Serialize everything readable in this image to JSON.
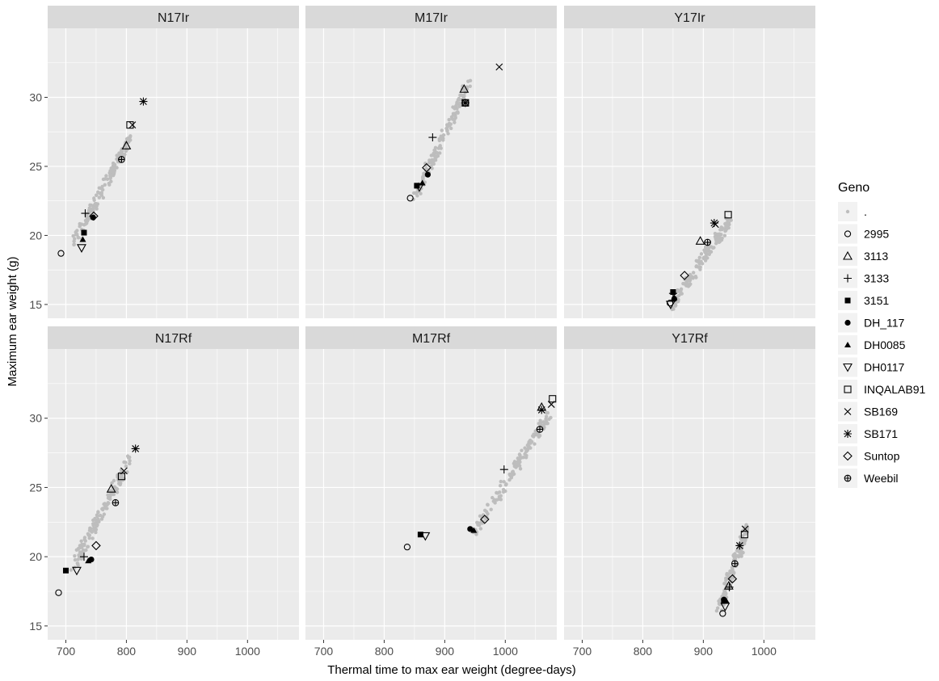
{
  "chart_data": {
    "type": "scatter",
    "xlabel": "Thermal time to max ear weight (degree-days)",
    "ylabel": "Maximum ear weight (g)",
    "x_ticks": [
      700,
      800,
      900,
      1000
    ],
    "y_ticks": [
      15,
      20,
      25,
      30
    ],
    "legend": {
      "title": "Geno",
      "position": "right",
      "entries": [
        {
          "label": ".",
          "shape": "dot-grey"
        },
        {
          "label": "2995",
          "shape": "circle-open"
        },
        {
          "label": "3113",
          "shape": "triangle-open"
        },
        {
          "label": "3133",
          "shape": "plus"
        },
        {
          "label": "3151",
          "shape": "square-filled"
        },
        {
          "label": "DH_117",
          "shape": "circle-filled"
        },
        {
          "label": "DH0085",
          "shape": "triangle-filled"
        },
        {
          "label": "DH0117",
          "shape": "triangle-down-open"
        },
        {
          "label": "INQALAB91",
          "shape": "square-open"
        },
        {
          "label": "SB169",
          "shape": "cross"
        },
        {
          "label": "SB171",
          "shape": "asterisk"
        },
        {
          "label": "Suntop",
          "shape": "diamond-open"
        },
        {
          "label": "Weebil",
          "shape": "circle-plus"
        }
      ]
    },
    "panels": [
      {
        "title": "N17Ir",
        "xlim": [
          670,
          1085
        ],
        "ylim": [
          14,
          35
        ],
        "background_cloud": {
          "x_range": [
            715,
            805
          ],
          "y_range": [
            19.5,
            27.0
          ],
          "count": 140
        },
        "points": [
          {
            "geno": "2995",
            "x": 692,
            "y": 18.7
          },
          {
            "geno": "3113",
            "x": 800,
            "y": 26.5
          },
          {
            "geno": "3133",
            "x": 732,
            "y": 21.6
          },
          {
            "geno": "3151",
            "x": 730,
            "y": 20.2
          },
          {
            "geno": "DH_117",
            "x": 745,
            "y": 21.3
          },
          {
            "geno": "DH0085",
            "x": 728,
            "y": 19.7
          },
          {
            "geno": "DH0117",
            "x": 726,
            "y": 19.1
          },
          {
            "geno": "INQALAB91",
            "x": 806,
            "y": 28.0
          },
          {
            "geno": "SB169",
            "x": 810,
            "y": 28.0
          },
          {
            "geno": "SB171",
            "x": 828,
            "y": 29.7
          },
          {
            "geno": "Suntop",
            "x": 746,
            "y": 21.4
          },
          {
            "geno": "Weebil",
            "x": 792,
            "y": 25.5
          }
        ]
      },
      {
        "title": "M17Ir",
        "xlim": [
          670,
          1085
        ],
        "ylim": [
          14,
          35
        ],
        "background_cloud": {
          "x_range": [
            852,
            940
          ],
          "y_range": [
            23.0,
            31.0
          ],
          "count": 140
        },
        "points": [
          {
            "geno": "2995",
            "x": 843,
            "y": 22.7
          },
          {
            "geno": "3113",
            "x": 932,
            "y": 30.6
          },
          {
            "geno": "3133",
            "x": 880,
            "y": 27.1
          },
          {
            "geno": "3151",
            "x": 854,
            "y": 23.6
          },
          {
            "geno": "DH_117",
            "x": 872,
            "y": 24.4
          },
          {
            "geno": "DH0085",
            "x": 863,
            "y": 23.8
          },
          {
            "geno": "DH0117",
            "x": 858,
            "y": 23.5
          },
          {
            "geno": "INQALAB91",
            "x": 934,
            "y": 29.6
          },
          {
            "geno": "SB169",
            "x": 990,
            "y": 32.2
          },
          {
            "geno": "SB171",
            "x": 934,
            "y": 29.6
          },
          {
            "geno": "Suntop",
            "x": 870,
            "y": 24.9
          },
          {
            "geno": "Weebil",
            "x": 934,
            "y": 29.6
          }
        ]
      },
      {
        "title": "Y17Ir",
        "xlim": [
          670,
          1085
        ],
        "ylim": [
          14,
          35
        ],
        "background_cloud": {
          "x_range": [
            848,
            945
          ],
          "y_range": [
            15.0,
            21.2
          ],
          "count": 140
        },
        "points": [
          {
            "geno": "2995",
            "x": 845,
            "y": 15.1
          },
          {
            "geno": "3113",
            "x": 895,
            "y": 19.6
          },
          {
            "geno": "3133",
            "x": 850,
            "y": 15.8
          },
          {
            "geno": "3151",
            "x": 850,
            "y": 15.9
          },
          {
            "geno": "DH_117",
            "x": 852,
            "y": 15.4
          },
          {
            "geno": "DH0085",
            "x": 852,
            "y": 15.5
          },
          {
            "geno": "DH0117",
            "x": 846,
            "y": 15.0
          },
          {
            "geno": "INQALAB91",
            "x": 941,
            "y": 21.5
          },
          {
            "geno": "SB169",
            "x": 920,
            "y": 20.8
          },
          {
            "geno": "SB171",
            "x": 918,
            "y": 20.9
          },
          {
            "geno": "Suntop",
            "x": 869,
            "y": 17.1
          },
          {
            "geno": "Weebil",
            "x": 907,
            "y": 19.5
          }
        ]
      },
      {
        "title": "N17Rf",
        "xlim": [
          670,
          1085
        ],
        "ylim": [
          14,
          35
        ],
        "background_cloud": {
          "x_range": [
            712,
            805
          ],
          "y_range": [
            19.3,
            27.0
          ],
          "count": 140
        },
        "points": [
          {
            "geno": "2995",
            "x": 688,
            "y": 17.4
          },
          {
            "geno": "3113",
            "x": 775,
            "y": 24.9
          },
          {
            "geno": "3133",
            "x": 730,
            "y": 20.0
          },
          {
            "geno": "3151",
            "x": 700,
            "y": 19.0
          },
          {
            "geno": "DH_117",
            "x": 742,
            "y": 19.8
          },
          {
            "geno": "DH0085",
            "x": 737,
            "y": 19.7
          },
          {
            "geno": "DH0117",
            "x": 718,
            "y": 19.0
          },
          {
            "geno": "INQALAB91",
            "x": 792,
            "y": 25.8
          },
          {
            "geno": "SB169",
            "x": 796,
            "y": 26.2
          },
          {
            "geno": "SB171",
            "x": 815,
            "y": 27.8
          },
          {
            "geno": "Suntop",
            "x": 750,
            "y": 20.8
          },
          {
            "geno": "Weebil",
            "x": 782,
            "y": 23.9
          }
        ]
      },
      {
        "title": "M17Rf",
        "xlim": [
          670,
          1085
        ],
        "ylim": [
          14,
          35
        ],
        "background_cloud": {
          "x_range": [
            950,
            1075
          ],
          "y_range": [
            21.8,
            30.5
          ],
          "count": 140
        },
        "points": [
          {
            "geno": "2995",
            "x": 838,
            "y": 20.7
          },
          {
            "geno": "3113",
            "x": 1060,
            "y": 30.8
          },
          {
            "geno": "3133",
            "x": 998,
            "y": 26.3
          },
          {
            "geno": "3151",
            "x": 860,
            "y": 21.6
          },
          {
            "geno": "DH_117",
            "x": 942,
            "y": 22.0
          },
          {
            "geno": "DH0085",
            "x": 948,
            "y": 21.9
          },
          {
            "geno": "DH0117",
            "x": 868,
            "y": 21.5
          },
          {
            "geno": "INQALAB91",
            "x": 1078,
            "y": 31.4
          },
          {
            "geno": "SB169",
            "x": 1076,
            "y": 31.0
          },
          {
            "geno": "SB171",
            "x": 1060,
            "y": 30.6
          },
          {
            "geno": "Suntop",
            "x": 966,
            "y": 22.7
          },
          {
            "geno": "Weebil",
            "x": 1057,
            "y": 29.2
          }
        ]
      },
      {
        "title": "Y17Rf",
        "xlim": [
          670,
          1085
        ],
        "ylim": [
          14,
          35
        ],
        "background_cloud": {
          "x_range": [
            925,
            972
          ],
          "y_range": [
            16.2,
            22.0
          ],
          "count": 120
        },
        "points": [
          {
            "geno": "2995",
            "x": 932,
            "y": 15.9
          },
          {
            "geno": "3113",
            "x": 942,
            "y": 17.9
          },
          {
            "geno": "3133",
            "x": 943,
            "y": 17.8
          },
          {
            "geno": "3151",
            "x": 934,
            "y": 16.8
          },
          {
            "geno": "DH_117",
            "x": 934,
            "y": 16.9
          },
          {
            "geno": "DH0085",
            "x": 938,
            "y": 16.8
          },
          {
            "geno": "DH0117",
            "x": 936,
            "y": 16.4
          },
          {
            "geno": "INQALAB91",
            "x": 968,
            "y": 21.6
          },
          {
            "geno": "SB169",
            "x": 969,
            "y": 22.0
          },
          {
            "geno": "SB171",
            "x": 960,
            "y": 20.8
          },
          {
            "geno": "Suntop",
            "x": 948,
            "y": 18.4
          },
          {
            "geno": "Weebil",
            "x": 952,
            "y": 19.5
          }
        ]
      }
    ]
  }
}
